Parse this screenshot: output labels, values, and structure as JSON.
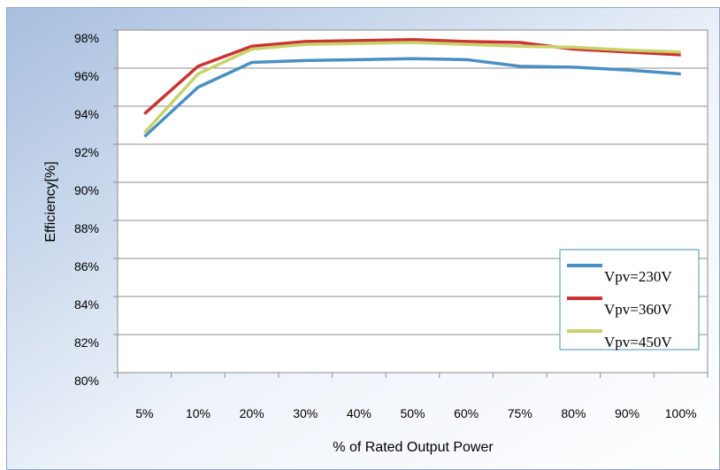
{
  "chart_data": {
    "type": "line",
    "x_label": "% of Rated Output Power",
    "y_label": "Efficiency[%]",
    "categories": [
      "5%",
      "10%",
      "20%",
      "30%",
      "40%",
      "50%",
      "60%",
      "75%",
      "80%",
      "90%",
      "100%"
    ],
    "series": [
      {
        "name": "Vpv=230V",
        "color": "#4a8fc2",
        "values": [
          92.4,
          95.0,
          96.3,
          96.4,
          96.45,
          96.5,
          96.45,
          96.1,
          96.05,
          95.9,
          95.7
        ]
      },
      {
        "name": "Vpv=360V",
        "color": "#cc3333",
        "values": [
          93.6,
          96.1,
          97.15,
          97.4,
          97.45,
          97.5,
          97.4,
          97.35,
          97.0,
          96.85,
          96.7
        ]
      },
      {
        "name": "Vpv=450V",
        "color": "#c7d36a",
        "values": [
          92.6,
          95.7,
          97.0,
          97.25,
          97.3,
          97.35,
          97.25,
          97.15,
          97.1,
          96.95,
          96.85
        ]
      }
    ],
    "ylim": [
      80,
      98
    ],
    "yticks": [
      {
        "value": 80,
        "label": "80%"
      },
      {
        "value": 82,
        "label": "82%"
      },
      {
        "value": 84,
        "label": "84%"
      },
      {
        "value": 86,
        "label": "86%"
      },
      {
        "value": 88,
        "label": "88%"
      },
      {
        "value": 90,
        "label": "90%"
      },
      {
        "value": 92,
        "label": "92%"
      },
      {
        "value": 94,
        "label": "94%"
      },
      {
        "value": 96,
        "label": "96%"
      },
      {
        "value": 98,
        "label": "98%"
      }
    ],
    "grid": true,
    "legend": "right"
  }
}
